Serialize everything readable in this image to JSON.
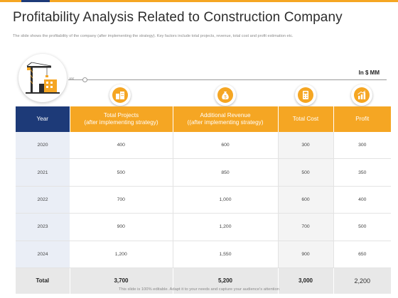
{
  "colors": {
    "accent": "#f5a623",
    "header_dark": "#1d3a78",
    "topbar": [
      "#f5a623",
      "#1d3a78",
      "#f5a623",
      "#f5a623"
    ]
  },
  "header": {
    "title": "Profitability Analysis Related to Construction Company",
    "subtitle": "The slide shows the profitability of the company (after implementing the strategy). Key factors include total projects, revenue, total cost and profit estimation etc."
  },
  "hero": {
    "icon": "construction-crane-building-icon"
  },
  "unit_label": "In $ MM",
  "column_icons": [
    "buildings-icon",
    "money-bag-icon",
    "calculator-icon",
    "growth-chart-icon"
  ],
  "table": {
    "headers": [
      "Year",
      "Total Projects\n(after implementing strategy)",
      "Additional Revenue\n((after implementing strategy)",
      "Total Cost",
      "Profit"
    ],
    "rows": [
      [
        "2020",
        "400",
        "600",
        "300",
        "300"
      ],
      [
        "2021",
        "500",
        "850",
        "500",
        "350"
      ],
      [
        "2022",
        "700",
        "1,000",
        "600",
        "400"
      ],
      [
        "2023",
        "900",
        "1,200",
        "700",
        "500"
      ],
      [
        "2024",
        "1,200",
        "1,550",
        "900",
        "650"
      ]
    ],
    "total": [
      "Total",
      "3,700",
      "5,200",
      "3,000",
      "2,200"
    ]
  },
  "footer": "This slide is 100% editable. Adapt it to your needs and capture your audience's attention"
}
